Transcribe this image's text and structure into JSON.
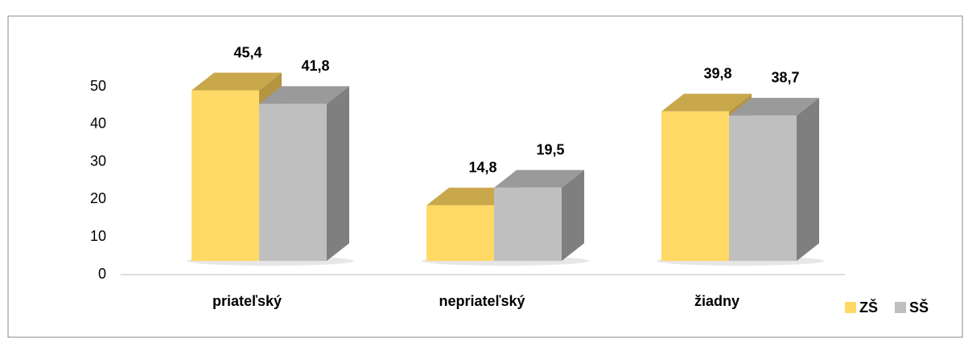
{
  "chart_data": {
    "type": "bar3d",
    "categories": [
      "priateľský",
      "nepriateľský",
      "žiadny"
    ],
    "series": [
      {
        "name": "ZŠ",
        "color": "#ffd966",
        "values": [
          45.4,
          14.8,
          39.8
        ],
        "value_labels": [
          "45,4",
          "14,8",
          "39,8"
        ]
      },
      {
        "name": "SŠ",
        "color": "#bfbfbf",
        "values": [
          41.8,
          19.5,
          38.7
        ],
        "value_labels": [
          "41,8",
          "19,5",
          "38,7"
        ]
      }
    ],
    "ylim": [
      0,
      50
    ],
    "yticks": [
      0,
      10,
      20,
      30,
      40,
      50
    ],
    "legend": "bottom-right"
  }
}
